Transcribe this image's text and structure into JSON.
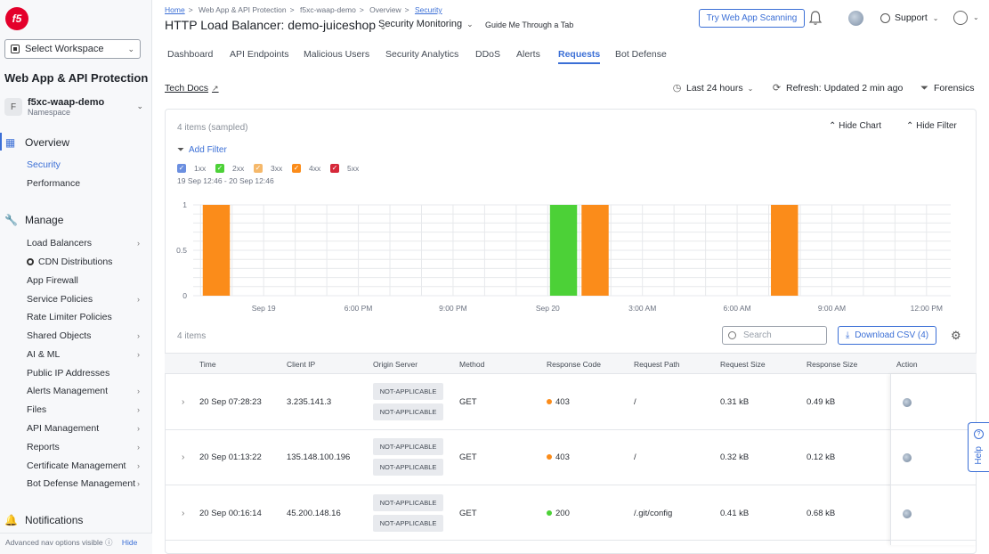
{
  "sidebar": {
    "logo": "f5",
    "workspace_select": "Select Workspace",
    "product_title": "Web App & API Protection",
    "namespace": {
      "avatar": "F",
      "name": "f5xc-waap-demo",
      "label": "Namespace"
    },
    "overview": {
      "label": "Overview",
      "subitems": [
        "Security",
        "Performance"
      ]
    },
    "manage": {
      "label": "Manage",
      "items": [
        {
          "label": "Load Balancers",
          "has_arrow": true
        },
        {
          "label": "CDN Distributions",
          "has_arrow": false
        },
        {
          "label": "App Firewall",
          "has_arrow": false
        },
        {
          "label": "Service Policies",
          "has_arrow": true
        },
        {
          "label": "Rate Limiter Policies",
          "has_arrow": false
        },
        {
          "label": "Shared Objects",
          "has_arrow": true
        },
        {
          "label": "AI & ML",
          "has_arrow": true
        },
        {
          "label": "Public IP Addresses",
          "has_arrow": false
        },
        {
          "label": "Alerts Management",
          "has_arrow": true
        },
        {
          "label": "Files",
          "has_arrow": true
        },
        {
          "label": "API Management",
          "has_arrow": true
        },
        {
          "label": "Reports",
          "has_arrow": true
        },
        {
          "label": "Certificate Management",
          "has_arrow": true
        },
        {
          "label": "Bot Defense Management",
          "has_arrow": true
        }
      ]
    },
    "notifications": "Notifications",
    "footer": {
      "text": "Advanced nav options visible",
      "hide": "Hide"
    }
  },
  "header": {
    "breadcrumb": [
      "Home",
      "Web App & API Protection",
      "f5xc-waap-demo",
      "Overview",
      "Security"
    ],
    "title": "HTTP Load Balancer: demo-juiceshop",
    "security_monitoring": "Security Monitoring",
    "guide": "Guide Me Through a Tab",
    "try_button": "Try Web App Scanning",
    "support": "Support"
  },
  "tabs": [
    {
      "label": "Dashboard",
      "active": false
    },
    {
      "label": "API Endpoints",
      "active": false
    },
    {
      "label": "Malicious Users",
      "active": false
    },
    {
      "label": "Security Analytics",
      "active": false
    },
    {
      "label": "DDoS",
      "active": false
    },
    {
      "label": "Alerts",
      "active": false
    },
    {
      "label": "Requests",
      "active": true
    },
    {
      "label": "Bot Defense",
      "active": false
    }
  ],
  "toolbar": {
    "tech_docs": "Tech Docs",
    "timeframe": "Last 24 hours",
    "refresh": "Refresh: Updated 2 min ago",
    "forensics": "Forensics"
  },
  "panel": {
    "items_sampled": "4 items (sampled)",
    "hide_chart": "Hide Chart",
    "hide_filter": "Hide Filter",
    "add_filter": "Add Filter",
    "legend": [
      {
        "label": "1xx",
        "color": "#6b8fe0"
      },
      {
        "label": "2xx",
        "color": "#4cd137"
      },
      {
        "label": "3xx",
        "color": "#f5b86a"
      },
      {
        "label": "4xx",
        "color": "#fb8c1a"
      },
      {
        "label": "5xx",
        "color": "#d62839"
      }
    ],
    "date_range": "19 Sep 12:46 - 20 Sep 12:46",
    "items_count": "4 items",
    "search_placeholder": "Search",
    "download": "Download CSV (4)"
  },
  "chart_data": {
    "type": "bar",
    "x_tick_labels": [
      "Sep 19",
      "6:00 PM",
      "9:00 PM",
      "Sep 20",
      "3:00 AM",
      "6:00 AM",
      "9:00 AM",
      "12:00 PM"
    ],
    "y_tick_labels": [
      "0",
      "0.5",
      "1"
    ],
    "ylim": [
      0,
      1
    ],
    "grid": true,
    "series": [
      {
        "name": "2xx",
        "color": "#4cd137",
        "bars": [
          {
            "x": "Sep 20 00:00",
            "value": 1
          }
        ]
      },
      {
        "name": "4xx",
        "color": "#fb8c1a",
        "bars": [
          {
            "x": "Sep 19 13:00",
            "value": 1
          },
          {
            "x": "Sep 20 01:00",
            "value": 1
          },
          {
            "x": "Sep 20 07:00",
            "value": 1
          }
        ]
      }
    ]
  },
  "table": {
    "headers": [
      "Time",
      "Client IP",
      "Origin Server",
      "Method",
      "Response Code",
      "Request Path",
      "Request Size",
      "Response Size",
      "Action"
    ],
    "rows": [
      {
        "time": "20 Sep 07:28:23",
        "ip": "3.235.141.3",
        "origin": [
          "NOT-APPLICABLE",
          "NOT-APPLICABLE"
        ],
        "method": "GET",
        "code": "403",
        "code_color": "#fb8c1a",
        "path": "/",
        "req_size": "0.31 kB",
        "resp_size": "0.49 kB"
      },
      {
        "time": "20 Sep 01:13:22",
        "ip": "135.148.100.196",
        "origin": [
          "NOT-APPLICABLE",
          "NOT-APPLICABLE"
        ],
        "method": "GET",
        "code": "403",
        "code_color": "#fb8c1a",
        "path": "/",
        "req_size": "0.32 kB",
        "resp_size": "0.12 kB"
      },
      {
        "time": "20 Sep 00:16:14",
        "ip": "45.200.148.16",
        "origin": [
          "NOT-APPLICABLE",
          "NOT-APPLICABLE"
        ],
        "method": "GET",
        "code": "200",
        "code_color": "#4cd137",
        "path": "/.git/config",
        "req_size": "0.41 kB",
        "resp_size": "0.68 kB"
      }
    ]
  },
  "help": "Help"
}
